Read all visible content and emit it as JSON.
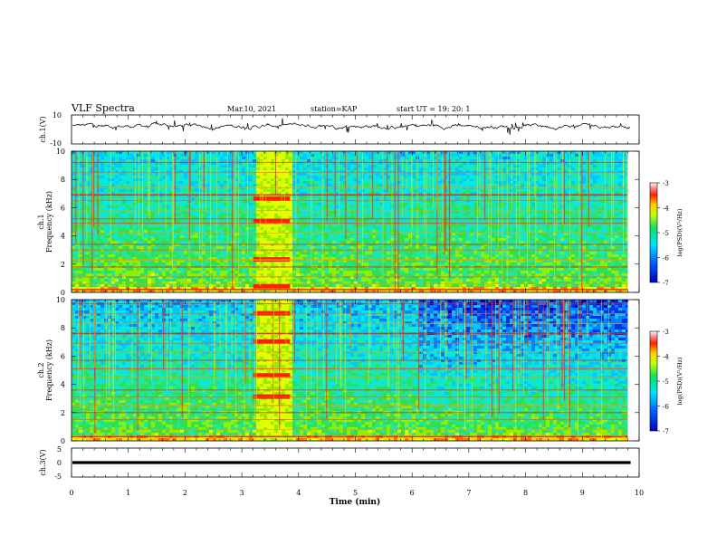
{
  "header": {
    "title": "VLF Spectra",
    "date": "Mar.10, 2021",
    "station": "station=KAP",
    "start": "start UT =  19: 20: 1"
  },
  "chart_data": [
    {
      "type": "line",
      "panel": "ch1-waveform",
      "ylabel": "ch.1(V)",
      "ylim": [
        -10,
        10
      ],
      "y_ticks": [
        "10",
        "-10"
      ],
      "x_range": [
        0,
        10
      ],
      "mean_value": 2.5,
      "color": "#000000"
    },
    {
      "type": "heatmap",
      "panel": "ch1-spectrogram",
      "ylabel": "ch.1\nFrequency (kHz)",
      "ylim": [
        0,
        10
      ],
      "y_ticks": [
        "0",
        "2",
        "4",
        "6",
        "8",
        "10"
      ],
      "x_range": [
        0,
        10
      ],
      "data_end_min": 9.8,
      "burst_interval_min": [
        3.2,
        3.85
      ],
      "colorbar": {
        "label": "log(PSD)(V²/Hz)",
        "range": [
          -7,
          -3
        ],
        "ticks": [
          "-3",
          "-4",
          "-5",
          "-6",
          "-7"
        ]
      }
    },
    {
      "type": "heatmap",
      "panel": "ch2-spectrogram",
      "ylabel": "ch.2\nFrequency (kHz)",
      "ylim": [
        0,
        10
      ],
      "y_ticks": [
        "0",
        "2",
        "4",
        "6",
        "8",
        "10"
      ],
      "x_range": [
        0,
        10
      ],
      "data_end_min": 9.8,
      "burst_interval_min": [
        3.2,
        3.85
      ],
      "colorbar": {
        "label": "log(PSD)(V²/Hz)",
        "range": [
          -7,
          -3
        ],
        "ticks": [
          "-3",
          "-4",
          "-5",
          "-6",
          "-7"
        ]
      }
    },
    {
      "type": "line",
      "panel": "ch3-waveform",
      "ylabel": "ch.3(V)",
      "ylim": [
        -5,
        5
      ],
      "y_ticks": [
        "5",
        "0",
        "-5"
      ],
      "x_range": [
        0,
        10
      ],
      "mean_value": 0,
      "color": "#000000"
    }
  ],
  "x_axis": {
    "label": "Time (min)",
    "ticks": [
      "0",
      "1",
      "2",
      "3",
      "4",
      "5",
      "6",
      "7",
      "8",
      "9",
      "10"
    ]
  }
}
